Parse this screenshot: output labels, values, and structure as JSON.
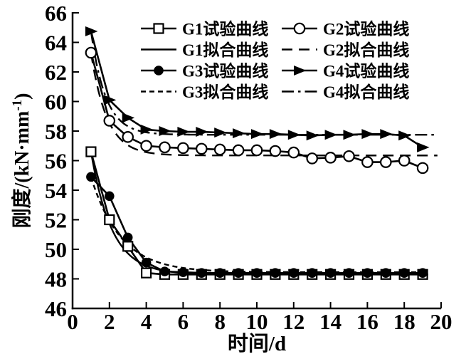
{
  "figure": {
    "background_color": "#ffffff",
    "ink_color": "#000000"
  },
  "chart_data": {
    "type": "line",
    "title": "",
    "xlabel": "时间/d",
    "ylabel": "刚度/(kN·mm⁻¹)",
    "ylabel_parts": {
      "base": "刚度/(kN·mm",
      "superscript": "-1",
      "close": ")"
    },
    "xlim": [
      0,
      20
    ],
    "ylim": [
      46,
      66
    ],
    "xticks": [
      0,
      2,
      4,
      6,
      8,
      10,
      12,
      14,
      16,
      18,
      20
    ],
    "yticks": [
      46,
      48,
      50,
      52,
      54,
      56,
      58,
      60,
      62,
      64,
      66
    ],
    "grid": false,
    "legend": {
      "position": "upper-center-inside",
      "frame": false,
      "columns": 2,
      "entries": [
        {
          "id": "g1-test",
          "label": "G1试验曲线",
          "marker": "open-square",
          "line_style": "solid"
        },
        {
          "id": "g2-test",
          "label": "G2试验曲线",
          "marker": "open-circle",
          "line_style": "solid"
        },
        {
          "id": "g1-fit",
          "label": "G1拟合曲线",
          "marker": "none",
          "line_style": "solid"
        },
        {
          "id": "g2-fit",
          "label": "G2拟合曲线",
          "marker": "none",
          "line_style": "long-dash"
        },
        {
          "id": "g3-test",
          "label": "G3试验曲线",
          "marker": "filled-circle",
          "line_style": "solid"
        },
        {
          "id": "g4-test",
          "label": "G4试验曲线",
          "marker": "filled-triangle-right",
          "line_style": "solid"
        },
        {
          "id": "g3-fit",
          "label": "G3拟合曲线",
          "marker": "none",
          "line_style": "short-dash"
        },
        {
          "id": "g4-fit",
          "label": "G4拟合曲线",
          "marker": "none",
          "line_style": "dash-dot"
        }
      ]
    },
    "x": [
      1,
      2,
      3,
      4,
      5,
      6,
      7,
      8,
      9,
      10,
      11,
      12,
      13,
      14,
      15,
      16,
      17,
      18,
      19
    ],
    "series": [
      {
        "id": "g1-fit",
        "name": "G1拟合曲线",
        "role": "fit",
        "marker": "none",
        "line_style": "solid",
        "fit": {
          "y_asymptote": 48.3,
          "amplitude": 8.3,
          "decay_rate": 0.88,
          "x_start": 1,
          "x_end": 19.3
        }
      },
      {
        "id": "g2-fit",
        "name": "G2拟合曲线",
        "role": "fit",
        "marker": "none",
        "line_style": "long-dash",
        "fit": {
          "y_asymptote": 56.35,
          "amplitude": 6.95,
          "decay_rate": 1.15,
          "x_start": 1,
          "x_end": 19.8
        }
      },
      {
        "id": "g3-fit",
        "name": "G3拟合曲线",
        "role": "fit",
        "marker": "none",
        "line_style": "short-dash",
        "fit": {
          "y_asymptote": 48.45,
          "amplitude": 6.45,
          "decay_rate": 0.62,
          "x_start": 1,
          "x_end": 19.3
        }
      },
      {
        "id": "g4-fit",
        "name": "G4拟合曲线",
        "role": "fit",
        "marker": "none",
        "line_style": "dash-dot",
        "fit": {
          "y_asymptote": 57.75,
          "amplitude": 7.0,
          "decay_rate": 1.25,
          "x_start": 1,
          "x_end": 19.8
        }
      },
      {
        "id": "g1-test",
        "name": "G1试验曲线",
        "role": "experimental",
        "marker": "open-square",
        "line_style": "solid",
        "values": [
          56.6,
          52.0,
          50.2,
          48.4,
          48.3,
          48.3,
          48.3,
          48.3,
          48.3,
          48.3,
          48.3,
          48.3,
          48.3,
          48.3,
          48.3,
          48.3,
          48.3,
          48.3,
          48.3
        ]
      },
      {
        "id": "g2-test",
        "name": "G2试验曲线",
        "role": "experimental",
        "marker": "open-circle",
        "line_style": "solid",
        "values": [
          63.3,
          58.7,
          57.6,
          57.0,
          56.9,
          56.85,
          56.8,
          56.75,
          56.7,
          56.7,
          56.65,
          56.55,
          56.15,
          56.2,
          56.3,
          55.9,
          55.9,
          56.0,
          55.5
        ]
      },
      {
        "id": "g3-test",
        "name": "G3试验曲线",
        "role": "experimental",
        "marker": "filled-circle",
        "line_style": "solid",
        "values": [
          54.9,
          53.6,
          50.8,
          49.1,
          48.5,
          48.45,
          48.4,
          48.4,
          48.4,
          48.4,
          48.4,
          48.4,
          48.4,
          48.4,
          48.4,
          48.4,
          48.4,
          48.4,
          48.4
        ]
      },
      {
        "id": "g4-test",
        "name": "G4试验曲线",
        "role": "experimental",
        "marker": "filled-triangle-right",
        "line_style": "solid",
        "values": [
          64.75,
          60.1,
          58.9,
          58.1,
          58.0,
          57.95,
          57.95,
          57.9,
          57.85,
          57.8,
          57.8,
          57.75,
          57.7,
          57.75,
          57.75,
          57.8,
          57.8,
          57.7,
          56.9
        ]
      }
    ]
  }
}
